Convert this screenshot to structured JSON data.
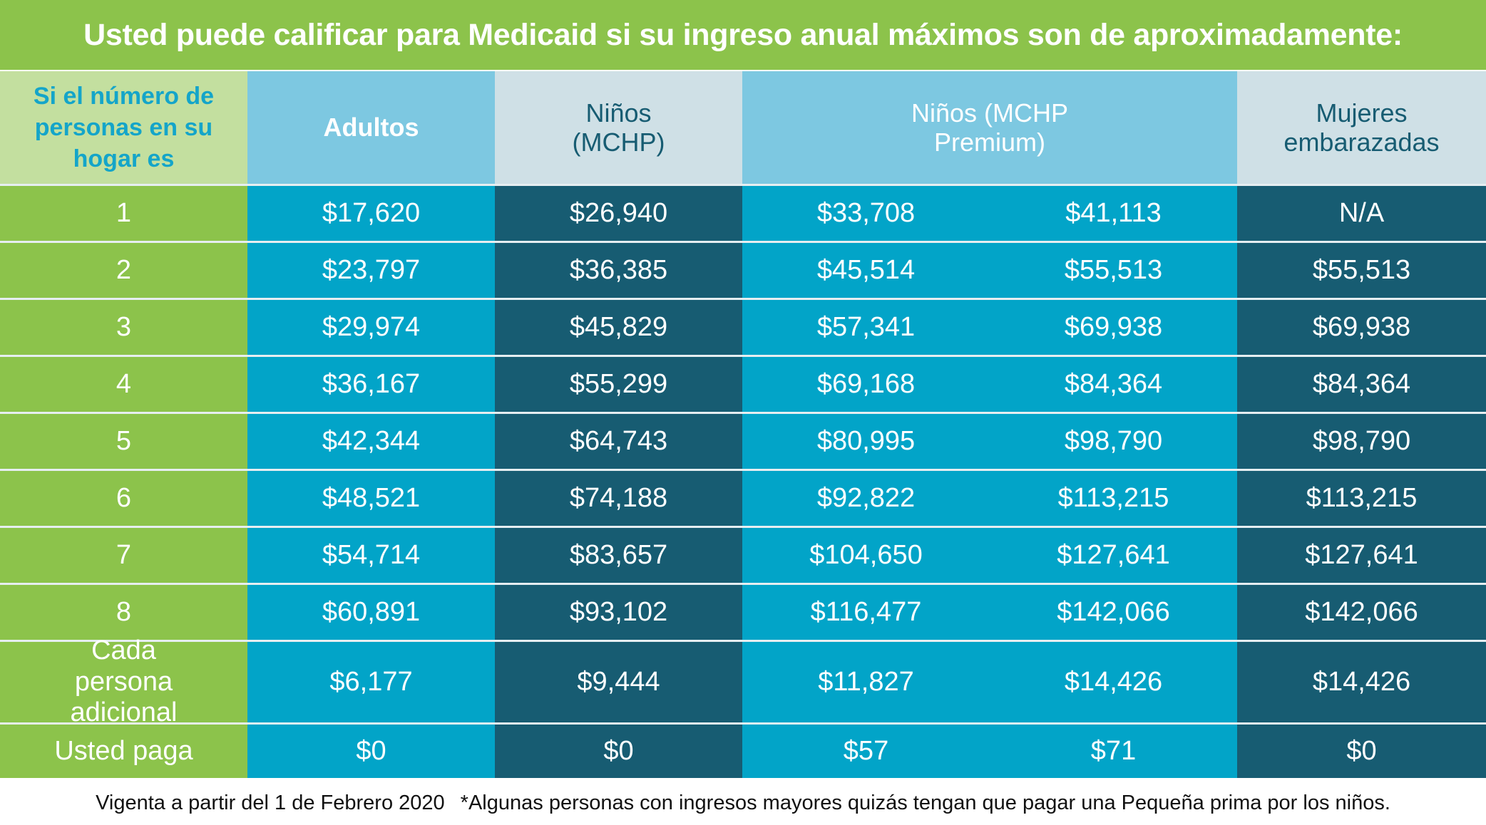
{
  "title": "Usted puede calificar para Medicaid si su ingreso anual máximos son de aproximadamente:",
  "colors": {
    "green": "#8cc34b",
    "light_green": "#c3df9f",
    "light_blue": "#7dc8e1",
    "pale_blue": "#cfe0e6",
    "cyan": "#02a4c8",
    "dark_teal": "#175c72"
  },
  "headers": {
    "household": "Si el número de personas en su hogar es",
    "adults": "Adultos",
    "children_mchp": "Niños (MCHP)",
    "children_mchp_premium": "Niños (MCHP Premium)",
    "pregnant_women": "Mujeres embarazadas"
  },
  "rows": [
    {
      "label": "1",
      "adults": "$17,620",
      "mchp": "$26,940",
      "premium_low": "$33,708",
      "premium_high": "$41,113",
      "pregnant": "N/A"
    },
    {
      "label": "2",
      "adults": "$23,797",
      "mchp": "$36,385",
      "premium_low": "$45,514",
      "premium_high": "$55,513",
      "pregnant": "$55,513"
    },
    {
      "label": "3",
      "adults": "$29,974",
      "mchp": "$45,829",
      "premium_low": "$57,341",
      "premium_high": "$69,938",
      "pregnant": "$69,938"
    },
    {
      "label": "4",
      "adults": "$36,167",
      "mchp": "$55,299",
      "premium_low": "$69,168",
      "premium_high": "$84,364",
      "pregnant": "$84,364"
    },
    {
      "label": "5",
      "adults": "$42,344",
      "mchp": "$64,743",
      "premium_low": "$80,995",
      "premium_high": "$98,790",
      "pregnant": "$98,790"
    },
    {
      "label": "6",
      "adults": "$48,521",
      "mchp": "$74,188",
      "premium_low": "$92,822",
      "premium_high": "$113,215",
      "pregnant": "$113,215"
    },
    {
      "label": "7",
      "adults": "$54,714",
      "mchp": "$83,657",
      "premium_low": "$104,650",
      "premium_high": "$127,641",
      "pregnant": "$127,641"
    },
    {
      "label": "8",
      "adults": "$60,891",
      "mchp": "$93,102",
      "premium_low": "$116,477",
      "premium_high": "$142,066",
      "pregnant": "$142,066"
    },
    {
      "label": "Cada persona adicional",
      "adults": "$6,177",
      "mchp": "$9,444",
      "premium_low": "$11,827",
      "premium_high": "$14,426",
      "pregnant": "$14,426"
    },
    {
      "label": "Usted paga",
      "adults": "$0",
      "mchp": "$0",
      "premium_low": "$57",
      "premium_high": "$71",
      "pregnant": "$0"
    }
  ],
  "footer": {
    "effective": "Vigenta a partir del 1 de Febrero 2020",
    "note": "*Algunas personas con ingresos mayores quizás tengan que pagar una Pequeña prima por los niños."
  }
}
